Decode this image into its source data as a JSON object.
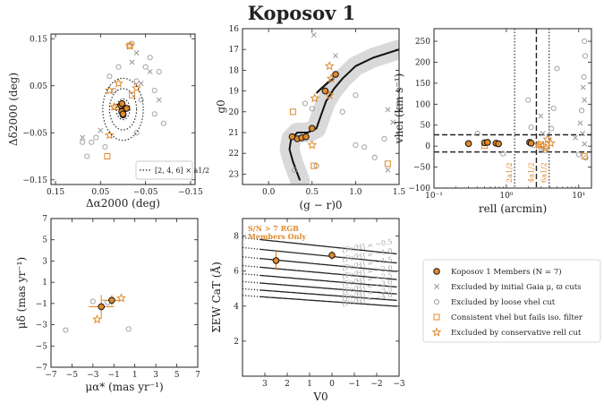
{
  "title": "Koposov 1",
  "colors": {
    "orange": "#e08a2c",
    "grey": "#999999",
    "band": "#d9d9d9",
    "black": "#111111",
    "text_grey": "#8a8a8a"
  },
  "chart_data": [
    {
      "type": "scatter",
      "name": "spatial",
      "xlabel": "Δα2000 (deg)",
      "ylabel": "Δδ2000 (deg)",
      "xlim": [
        0.16,
        -0.16
      ],
      "ylim": [
        -0.16,
        0.16
      ],
      "xticks": [
        0.15,
        0.05,
        -0.05,
        -0.15
      ],
      "yticks": [
        0.15,
        0.05,
        -0.05,
        -0.15
      ],
      "xticklabels": [
        "0.15",
        "0.05",
        "−0.05",
        "−0.15"
      ],
      "yticklabels": [
        "0.15",
        "0.05",
        "−0.05",
        "−0.15"
      ],
      "ellipse_legend": "[2, 4, 6] × a1/2",
      "ellipse": {
        "a_half": 0.011,
        "b_half": 0.0075,
        "multiples": [
          2,
          4,
          6
        ]
      },
      "members": [
        [
          0.001,
          0.003
        ],
        [
          -0.002,
          0.0
        ],
        [
          0.003,
          -0.005
        ],
        [
          -0.008,
          0.002
        ],
        [
          0.005,
          0.008
        ],
        [
          0.0,
          -0.01
        ],
        [
          0.002,
          0.012
        ]
      ],
      "members_vert": [
        [
          0.0,
          0.005
        ],
        [
          0.0,
          -0.003
        ],
        [
          0.0,
          -0.012
        ]
      ],
      "gaia_cut": [
        [
          -0.03,
          0.12
        ],
        [
          -0.06,
          0.08
        ],
        [
          -0.04,
          0.055
        ],
        [
          -0.08,
          0.02
        ],
        [
          0.09,
          -0.06
        ],
        [
          0.05,
          -0.045
        ],
        [
          -0.02,
          0.1
        ]
      ],
      "loose_vhel": [
        [
          0.07,
          -0.07
        ],
        [
          0.06,
          -0.06
        ],
        [
          0.09,
          -0.07
        ],
        [
          0.08,
          -0.1
        ],
        [
          0.04,
          -0.08
        ],
        [
          -0.05,
          0.09
        ],
        [
          -0.07,
          0.04
        ],
        [
          -0.02,
          0.14
        ],
        [
          -0.08,
          0.08
        ],
        [
          -0.06,
          0.11
        ],
        [
          -0.03,
          0.06
        ],
        [
          -0.04,
          0.02
        ],
        [
          0.02,
          0.04
        ],
        [
          -0.07,
          -0.01
        ],
        [
          -0.03,
          -0.05
        ],
        [
          0.03,
          0.07
        ],
        [
          -0.09,
          -0.03
        ],
        [
          0.01,
          0.09
        ]
      ],
      "iso_filter": [
        [
          -0.015,
          0.135
        ],
        [
          0.035,
          -0.1
        ],
        [
          0.015,
          0.005
        ],
        [
          -0.02,
          0.03
        ]
      ],
      "conservative_r": [
        [
          0.01,
          0.055
        ],
        [
          -0.03,
          0.045
        ],
        [
          0.02,
          0.005
        ],
        [
          0.03,
          -0.055
        ],
        [
          -0.015,
          0.135
        ],
        [
          0.03,
          0.04
        ]
      ]
    },
    {
      "type": "scatter",
      "name": "cmd",
      "xlabel": "(g − r)0",
      "ylabel": "g0",
      "xlim": [
        -0.3,
        1.5
      ],
      "ylim": [
        23.5,
        16.0
      ],
      "xticks": [
        0.0,
        0.5,
        1.0,
        1.5
      ],
      "yticks": [
        16,
        17,
        18,
        19,
        20,
        21,
        22,
        23
      ],
      "xticklabels": [
        "0.0",
        "0.5",
        "1.0",
        "1.5"
      ],
      "yticklabels": [
        "16",
        "17",
        "18",
        "19",
        "20",
        "21",
        "22",
        "23"
      ],
      "isochrone": [
        [
          0.36,
          23.3
        ],
        [
          0.28,
          22.4
        ],
        [
          0.24,
          21.8
        ],
        [
          0.26,
          21.3
        ],
        [
          0.33,
          21.0
        ],
        [
          0.45,
          21.0
        ],
        [
          0.55,
          20.8
        ],
        [
          0.6,
          20.2
        ],
        [
          0.66,
          19.5
        ],
        [
          0.75,
          18.9
        ],
        [
          0.85,
          18.4
        ],
        [
          1.0,
          17.8
        ],
        [
          1.2,
          17.4
        ],
        [
          1.5,
          17.0
        ]
      ],
      "hb": [
        [
          0.55,
          19.1
        ],
        [
          0.6,
          18.9
        ],
        [
          0.68,
          18.6
        ],
        [
          0.75,
          18.4
        ]
      ],
      "members": [
        [
          0.27,
          21.2
        ],
        [
          0.33,
          21.3
        ],
        [
          0.38,
          21.25
        ],
        [
          0.43,
          21.2
        ],
        [
          0.5,
          20.8
        ],
        [
          0.65,
          19.0
        ],
        [
          0.77,
          18.2
        ]
      ],
      "gaia_cut": [
        [
          0.52,
          16.3
        ],
        [
          0.77,
          17.3
        ],
        [
          1.37,
          19.9
        ],
        [
          1.43,
          20.5
        ],
        [
          1.37,
          22.8
        ]
      ],
      "loose_vhel": [
        [
          0.42,
          19.6
        ],
        [
          0.5,
          19.85
        ],
        [
          1.0,
          19.2
        ],
        [
          1.22,
          22.2
        ],
        [
          1.33,
          21.3
        ],
        [
          1.0,
          21.6
        ],
        [
          0.3,
          22.8
        ],
        [
          0.55,
          22.6
        ],
        [
          1.1,
          21.7
        ],
        [
          0.85,
          20.0
        ]
      ],
      "iso_filter": [
        [
          0.28,
          20.0
        ],
        [
          0.52,
          22.6
        ],
        [
          1.37,
          22.5
        ]
      ],
      "conservative_r": [
        [
          0.5,
          21.6
        ],
        [
          0.53,
          19.35
        ],
        [
          0.7,
          17.8
        ],
        [
          0.7,
          19.2
        ],
        [
          0.72,
          18.4
        ]
      ]
    },
    {
      "type": "scatter",
      "name": "velocity_radius",
      "xlabel": "rell (arcmin)",
      "ylabel": "vhel (km s⁻¹)",
      "xscale": "log",
      "xlim": [
        0.1,
        15
      ],
      "ylim": [
        -100,
        280
      ],
      "xticks": [
        0.1,
        1,
        10
      ],
      "yticks": [
        -100,
        -50,
        0,
        50,
        100,
        150,
        200,
        250
      ],
      "xticklabels": [
        "10⁻¹",
        "10⁰",
        "10¹"
      ],
      "yticklabels": [
        "−100",
        "−50",
        "0",
        "50",
        "100",
        "150",
        "200",
        "250"
      ],
      "vlines": [
        {
          "x": 1.3,
          "style": "dotted",
          "label": "2a1/2"
        },
        {
          "x": 2.6,
          "style": "dashed",
          "label": "4a1/2"
        },
        {
          "x": 3.9,
          "style": "dotted",
          "label": "6a1/2"
        }
      ],
      "hlines": [
        27,
        -14
      ],
      "members": [
        [
          0.3,
          6.0
        ],
        [
          0.5,
          8.0
        ],
        [
          0.55,
          9.0
        ],
        [
          0.72,
          7.0
        ],
        [
          0.78,
          5.5
        ],
        [
          2.1,
          9.0
        ],
        [
          2.2,
          7.0
        ]
      ],
      "gaia_cut": [
        [
          3.0,
          72
        ],
        [
          11.5,
          140
        ],
        [
          12.0,
          110
        ],
        [
          10.5,
          55
        ],
        [
          11.3,
          30
        ],
        [
          9.0,
          20
        ],
        [
          3.2,
          30
        ],
        [
          12.0,
          5
        ]
      ],
      "loose_vhel": [
        [
          0.4,
          30
        ],
        [
          2.0,
          110
        ],
        [
          2.2,
          45
        ],
        [
          3.0,
          -5
        ],
        [
          3.4,
          -10
        ],
        [
          4.5,
          90
        ],
        [
          5.0,
          185
        ],
        [
          12.0,
          250
        ],
        [
          12.3,
          215
        ],
        [
          11.8,
          165
        ],
        [
          11.0,
          85
        ],
        [
          12.5,
          -28
        ],
        [
          10.0,
          -20
        ],
        [
          4.2,
          42
        ],
        [
          0.9,
          -18
        ],
        [
          2.4,
          2
        ]
      ],
      "iso_filter": [
        [
          0.5,
          1.0
        ],
        [
          3.0,
          4.0
        ],
        [
          12.0,
          -24
        ]
      ],
      "conservative_r": [
        [
          2.8,
          3.0
        ],
        [
          3.2,
          1.0
        ],
        [
          3.7,
          16.0
        ],
        [
          4.1,
          7.0
        ],
        [
          3.5,
          -5.0
        ]
      ]
    },
    {
      "type": "scatter",
      "name": "proper_motion",
      "xlabel": "μα* (mas yr⁻¹)",
      "ylabel": "μδ (mas yr⁻¹)",
      "xlim": [
        -7,
        7
      ],
      "ylim": [
        -7,
        7
      ],
      "xticks": [
        -7,
        -5,
        -3,
        -1,
        1,
        3,
        5,
        7
      ],
      "yticks": [
        -7,
        -5,
        -3,
        -1,
        1,
        3,
        5,
        7
      ],
      "xticklabels": [
        "−7",
        "−5",
        "−3",
        "−1",
        "1",
        "3",
        "5",
        "7"
      ],
      "yticklabels": [
        "−7",
        "−5",
        "−3",
        "−1",
        "1",
        "3",
        "5",
        "7"
      ],
      "members": [
        [
          -1.2,
          -0.7
        ],
        [
          -2.2,
          -1.3
        ]
      ],
      "member_errors": [
        [
          0.9,
          0.5
        ],
        [
          1.2,
          1.1
        ]
      ],
      "loose_vhel": [
        [
          -5.6,
          -3.5
        ],
        [
          -3.0,
          -0.8
        ],
        [
          0.4,
          -3.4
        ],
        [
          -1.6,
          -0.9
        ]
      ],
      "conservative_r": [
        [
          -2.6,
          -2.5
        ],
        [
          -0.3,
          -0.5
        ]
      ]
    },
    {
      "type": "line",
      "name": "cat_ew",
      "xlabel": "V0",
      "ylabel": "ΣEW CaT (Å)",
      "xlim": [
        4.0,
        -3.0
      ],
      "ylim": [
        0,
        9
      ],
      "xticks": [
        3,
        2,
        1,
        0,
        -1,
        -2,
        -3
      ],
      "yticks": [
        2,
        4,
        6,
        8
      ],
      "xticklabels": [
        "3",
        "2",
        "1",
        "0",
        "−1",
        "−2",
        "−3"
      ],
      "yticklabels": [
        "2",
        "4",
        "6",
        "8"
      ],
      "note_line1": "S/N > 7 RGB",
      "note_line2": "Members Only",
      "feh": [
        -0.5,
        -1.0,
        -1.5,
        -2.0,
        -2.5,
        -3.0,
        -3.5,
        -4.0
      ],
      "feh_labels": [
        "[Fe/H] = −0.5",
        "[Fe/H] = −1.0",
        "[Fe/H] = −1.5",
        "[Fe/H] = −2.0",
        "[Fe/H] = −2.5",
        "[Fe/H] = −3.0",
        "[Fe/H] = −3.5",
        "[Fe/H] = −4.0"
      ],
      "members": [
        [
          2.5,
          6.6
        ],
        [
          0.0,
          6.9
        ]
      ],
      "member_errors": [
        [
          0.0,
          0.55
        ],
        [
          0.0,
          0.25
        ]
      ]
    }
  ],
  "legend": [
    {
      "marker": "member",
      "label": "Koposov 1 Members (N = 7)"
    },
    {
      "marker": "x",
      "label": "Excluded by initial Gaia μ, ϖ cuts"
    },
    {
      "marker": "circle",
      "label": "Excluded by loose vhel cut"
    },
    {
      "marker": "square",
      "label": "Consistent vhel but fails iso. filter"
    },
    {
      "marker": "star",
      "label": "Excluded by conservative rell cut"
    }
  ]
}
